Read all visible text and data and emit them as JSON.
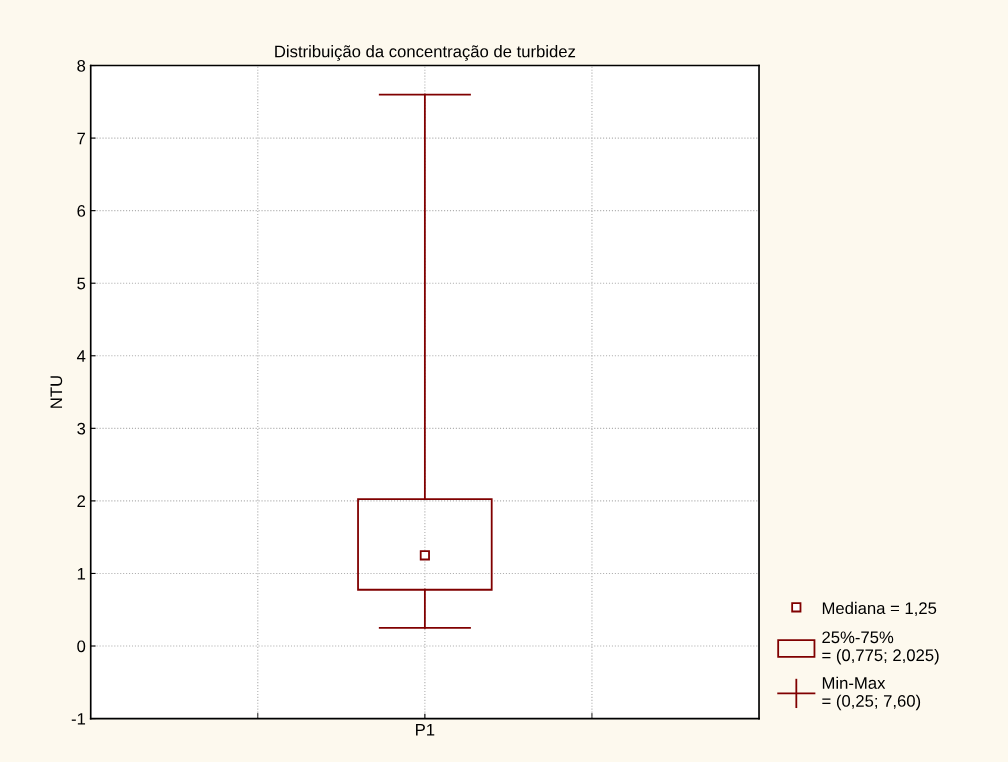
{
  "chart_data": {
    "type": "box",
    "title": "Distribuição da concentração de turbidez",
    "ylabel": "NTU",
    "categories": [
      "P1"
    ],
    "boxes": [
      {
        "low": 0.25,
        "q1": 0.775,
        "median": 1.25,
        "q3": 2.025,
        "high": 7.6
      }
    ],
    "color": "#800000",
    "ylim": [
      -1,
      8
    ],
    "yticks": [
      -1,
      0,
      1,
      2,
      3,
      4,
      5,
      6,
      7,
      8
    ],
    "grid": true,
    "annotations": [
      "Mediana = 1,25",
      "25%-75%\n= (0,775; 2,025)",
      "Min-Max\n= (0,25; 7,60)"
    ]
  }
}
